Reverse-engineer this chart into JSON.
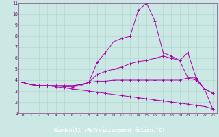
{
  "xlabel": "Windchill (Refroidissement éolien,°C)",
  "background_color": "#cce8e4",
  "grid_color": "#aad4cc",
  "line_color": "#aa00aa",
  "xlabel_bg": "#7700aa",
  "xlabel_fg": "#ffffff",
  "xlim": [
    -0.5,
    23.5
  ],
  "ylim": [
    1,
    11
  ],
  "xticks": [
    0,
    1,
    2,
    3,
    4,
    5,
    6,
    7,
    8,
    9,
    10,
    11,
    12,
    13,
    14,
    15,
    16,
    17,
    18,
    19,
    20,
    21,
    22,
    23
  ],
  "yticks": [
    1,
    2,
    3,
    4,
    5,
    6,
    7,
    8,
    9,
    10,
    11
  ],
  "lines": [
    {
      "x": [
        0,
        1,
        2,
        3,
        4,
        5,
        6,
        7,
        8,
        9,
        10,
        11,
        12,
        13,
        14,
        15,
        16,
        17,
        18,
        19,
        20,
        21,
        22,
        23
      ],
      "y": [
        3.8,
        3.6,
        3.5,
        3.5,
        3.5,
        3.5,
        3.5,
        3.6,
        3.8,
        5.6,
        6.5,
        7.5,
        7.8,
        8.0,
        10.4,
        11.0,
        9.4,
        6.5,
        6.2,
        5.8,
        6.5,
        4.2,
        3.2,
        2.8
      ]
    },
    {
      "x": [
        0,
        1,
        2,
        3,
        4,
        5,
        6,
        7,
        8,
        9,
        10,
        11,
        12,
        13,
        14,
        15,
        16,
        17,
        18,
        19,
        20,
        21,
        22,
        23
      ],
      "y": [
        3.8,
        3.6,
        3.5,
        3.5,
        3.5,
        3.5,
        3.5,
        3.6,
        3.8,
        4.5,
        4.8,
        5.0,
        5.2,
        5.5,
        5.7,
        5.8,
        6.0,
        6.2,
        6.0,
        5.8,
        4.2,
        4.0,
        3.2,
        1.4
      ]
    },
    {
      "x": [
        0,
        1,
        2,
        3,
        4,
        5,
        6,
        7,
        8,
        9,
        10,
        11,
        12,
        13,
        14,
        15,
        16,
        17,
        18,
        19,
        20,
        21,
        22,
        23
      ],
      "y": [
        3.8,
        3.6,
        3.5,
        3.5,
        3.5,
        3.4,
        3.4,
        3.5,
        3.8,
        3.9,
        3.9,
        4.0,
        4.0,
        4.0,
        4.0,
        4.0,
        4.0,
        4.0,
        4.0,
        4.0,
        4.2,
        4.2,
        3.2,
        2.8
      ]
    },
    {
      "x": [
        0,
        1,
        2,
        3,
        4,
        5,
        6,
        7,
        8,
        9,
        10,
        11,
        12,
        13,
        14,
        15,
        16,
        17,
        18,
        19,
        20,
        21,
        22,
        23
      ],
      "y": [
        3.8,
        3.6,
        3.5,
        3.5,
        3.4,
        3.3,
        3.2,
        3.1,
        3.0,
        2.9,
        2.8,
        2.7,
        2.6,
        2.5,
        2.4,
        2.3,
        2.2,
        2.1,
        2.0,
        1.9,
        1.8,
        1.7,
        1.6,
        1.4
      ]
    }
  ]
}
